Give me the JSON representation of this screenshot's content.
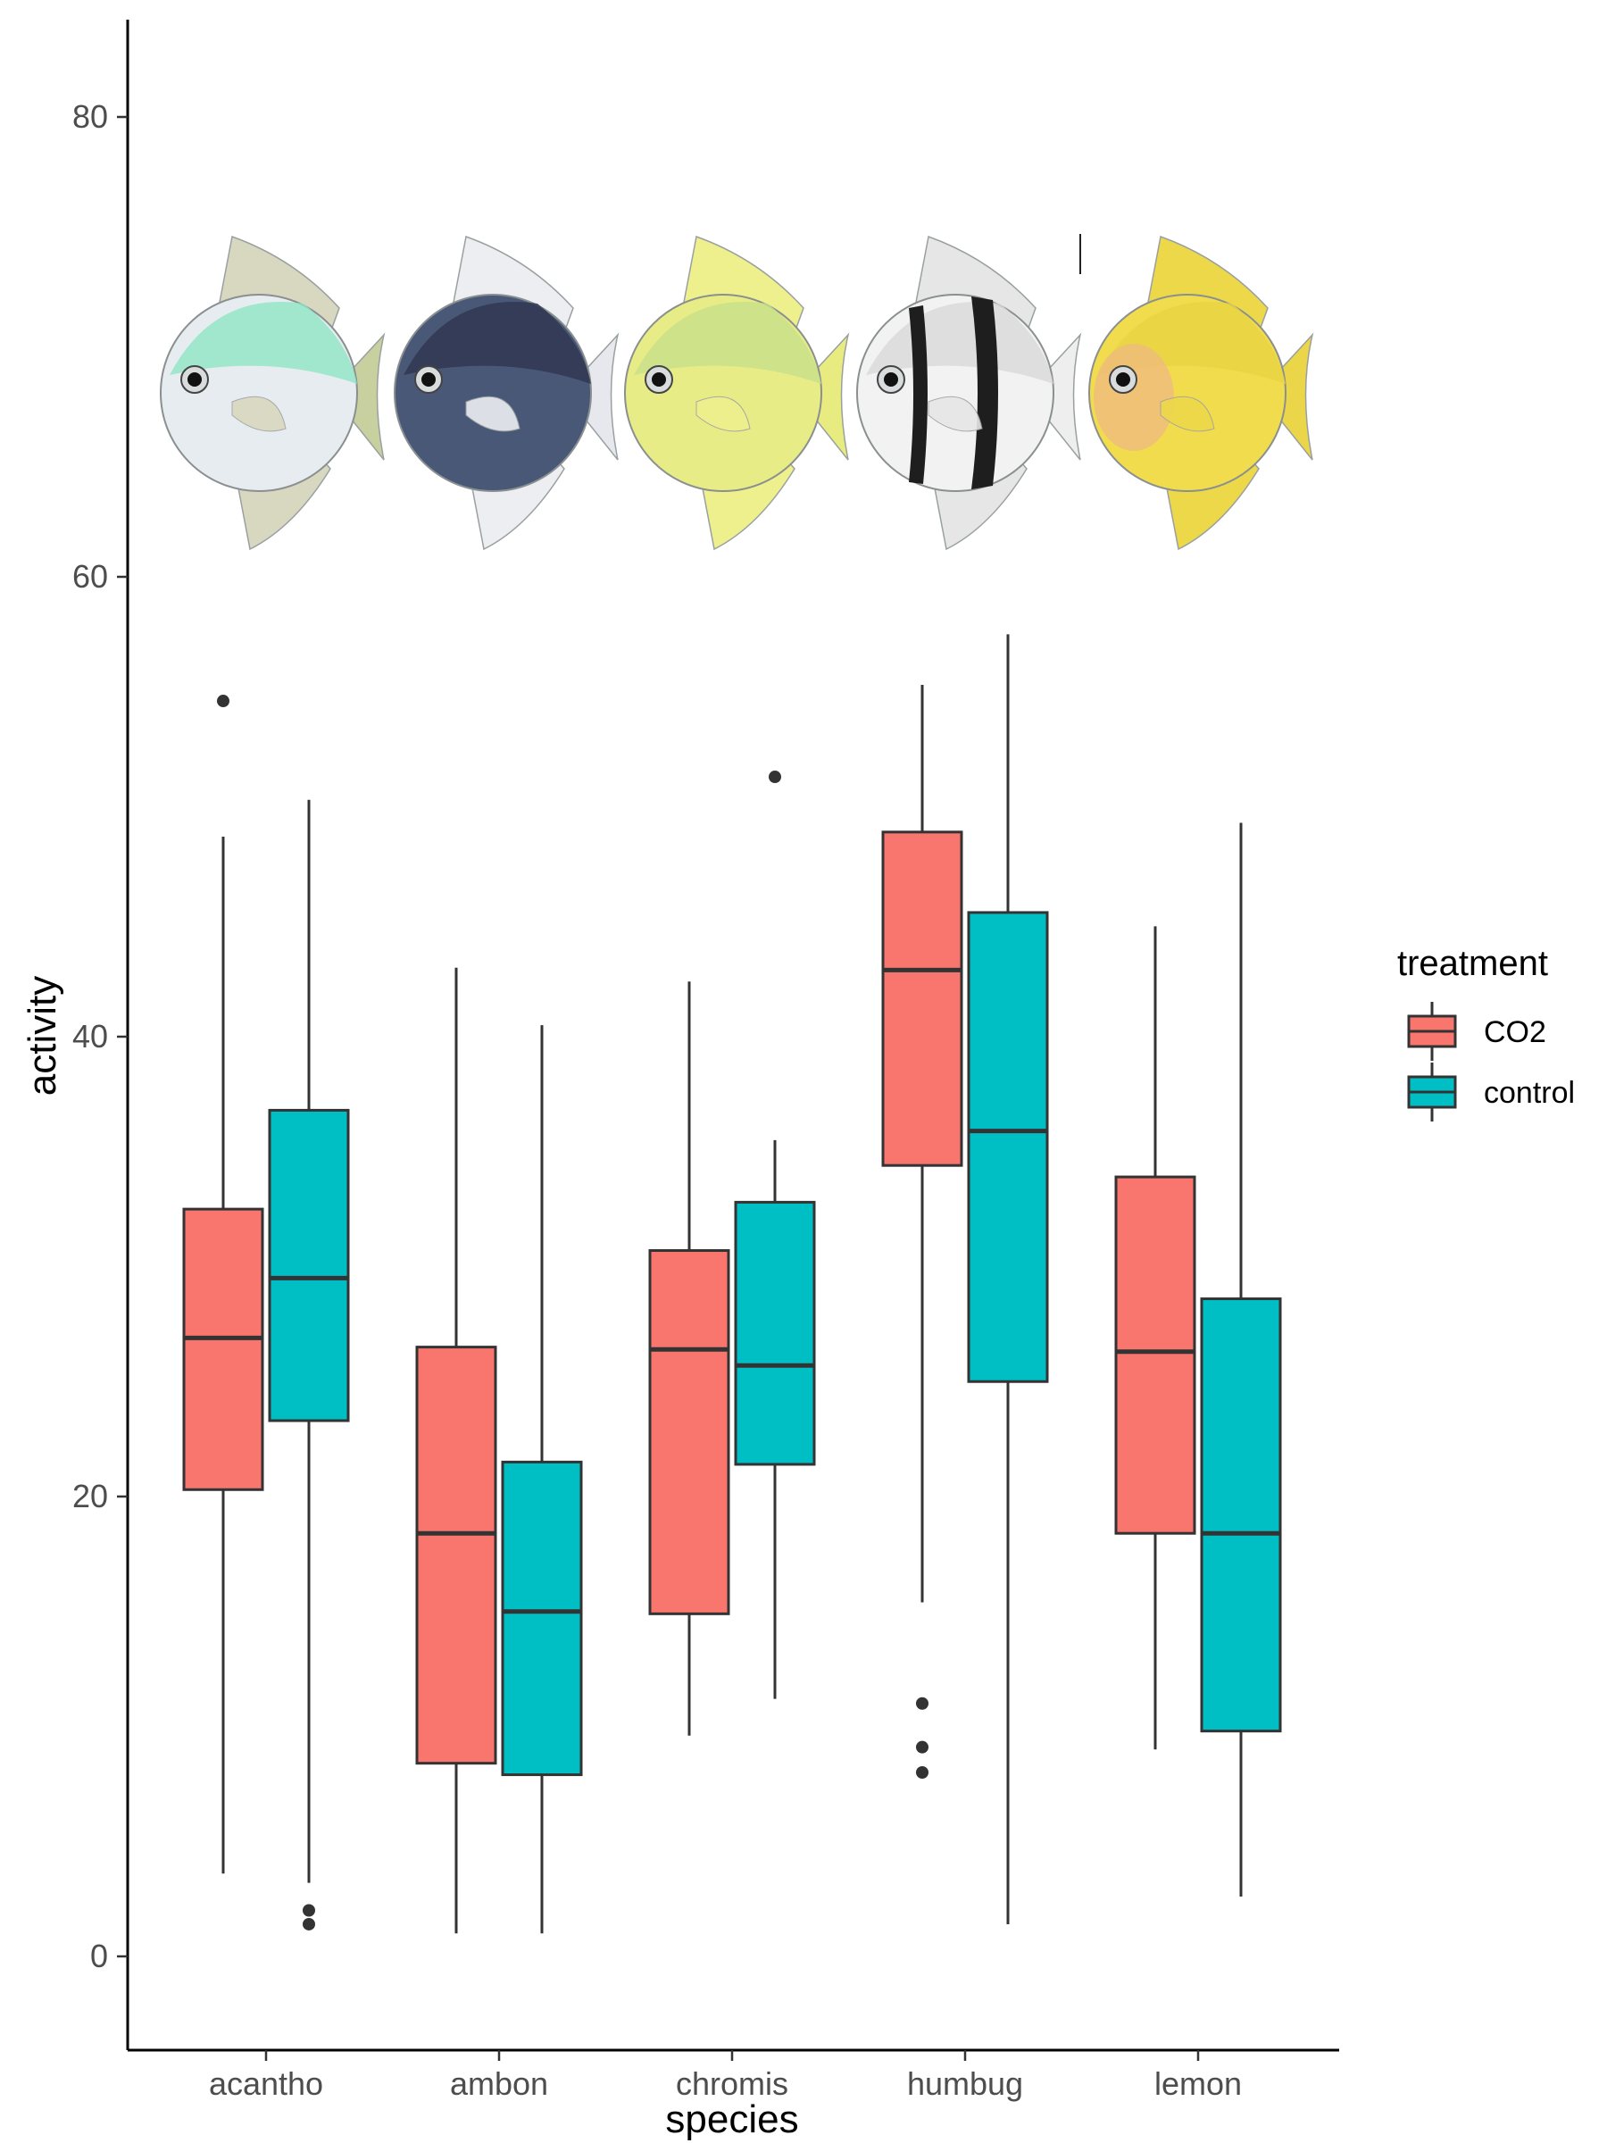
{
  "chart_data": {
    "type": "box",
    "xlabel": "species",
    "ylabel": "activity",
    "ylim": [
      -3.5,
      84
    ],
    "yticks": [
      0,
      20,
      40,
      60,
      80
    ],
    "grid": false,
    "legend": {
      "title": "treatment",
      "position": "right"
    },
    "categories": [
      "acantho",
      "ambon",
      "chromis",
      "humbug",
      "lemon"
    ],
    "series": [
      {
        "name": "CO2",
        "color": "#F8766D",
        "boxes": [
          {
            "category": "acantho",
            "whisker_low": 3.6,
            "q1": 20.3,
            "median": 26.9,
            "q3": 32.5,
            "whisker_high": 48.7,
            "outliers": [
              54.6
            ]
          },
          {
            "category": "ambon",
            "whisker_low": 1.0,
            "q1": 8.4,
            "median": 18.4,
            "q3": 26.5,
            "whisker_high": 43.0,
            "outliers": []
          },
          {
            "category": "chromis",
            "whisker_low": 9.6,
            "q1": 14.9,
            "median": 26.4,
            "q3": 30.7,
            "whisker_high": 42.4,
            "outliers": []
          },
          {
            "category": "humbug",
            "whisker_low": 15.4,
            "q1": 34.4,
            "median": 42.9,
            "q3": 48.9,
            "whisker_high": 55.3,
            "outliers": [
              11.0,
              9.1,
              8.0
            ]
          },
          {
            "category": "lemon",
            "whisker_low": 9.0,
            "q1": 18.4,
            "median": 26.3,
            "q3": 33.9,
            "whisker_high": 44.8,
            "outliers": []
          }
        ]
      },
      {
        "name": "control",
        "color": "#00BFC4",
        "boxes": [
          {
            "category": "acantho",
            "whisker_low": 3.2,
            "q1": 23.3,
            "median": 29.5,
            "q3": 36.8,
            "whisker_high": 50.3,
            "outliers": [
              2.0,
              1.4
            ]
          },
          {
            "category": "ambon",
            "whisker_low": 1.0,
            "q1": 7.9,
            "median": 15.0,
            "q3": 21.5,
            "whisker_high": 40.5,
            "outliers": []
          },
          {
            "category": "chromis",
            "whisker_low": 11.2,
            "q1": 21.4,
            "median": 25.7,
            "q3": 32.8,
            "whisker_high": 35.5,
            "outliers": [
              51.3
            ]
          },
          {
            "category": "humbug",
            "whisker_low": 1.4,
            "q1": 25.0,
            "median": 35.9,
            "q3": 45.4,
            "whisker_high": 57.5,
            "outliers": []
          },
          {
            "category": "lemon",
            "whisker_low": 2.6,
            "q1": 9.8,
            "median": 18.4,
            "q3": 28.6,
            "whisker_high": 49.3,
            "outliers": []
          }
        ]
      }
    ],
    "fish_images": [
      {
        "category": "acantho",
        "name": "acantho-fish-image",
        "colors": {
          "body": "#e6ecef",
          "back": "#8fe6c6",
          "fin": "#d8d8c0",
          "tail": "#c8d0a0"
        }
      },
      {
        "category": "ambon",
        "name": "ambon-fish-image",
        "colors": {
          "body": "#4a5878",
          "back": "#2e3650",
          "fin": "#eceef2",
          "tail": "#e6e8ee"
        }
      },
      {
        "category": "chromis",
        "name": "chromis-fish-image",
        "colors": {
          "body": "#e8ec86",
          "back": "#c6e08a",
          "fin": "#eef08e",
          "tail": "#e8ec80"
        }
      },
      {
        "category": "humbug",
        "name": "humbug-fish-image",
        "colors": {
          "body": "#f2f2f2",
          "back": "#d8d8d8",
          "fin": "#e6e6e6",
          "tail": "#eeeeee",
          "stripe": "#1e1e1e"
        }
      },
      {
        "category": "lemon",
        "name": "lemon-fish-image",
        "colors": {
          "body": "#f1dc4e",
          "back": "#e8d444",
          "fin": "#edd84a",
          "tail": "#ead648",
          "face": "#f0b090"
        }
      }
    ]
  }
}
